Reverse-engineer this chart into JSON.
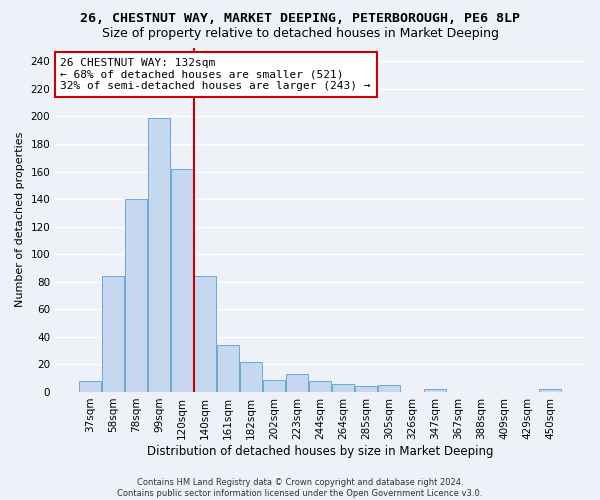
{
  "title": "26, CHESTNUT WAY, MARKET DEEPING, PETERBOROUGH, PE6 8LP",
  "subtitle": "Size of property relative to detached houses in Market Deeping",
  "xlabel": "Distribution of detached houses by size in Market Deeping",
  "ylabel": "Number of detached properties",
  "categories": [
    "37sqm",
    "58sqm",
    "78sqm",
    "99sqm",
    "120sqm",
    "140sqm",
    "161sqm",
    "182sqm",
    "202sqm",
    "223sqm",
    "244sqm",
    "264sqm",
    "285sqm",
    "305sqm",
    "326sqm",
    "347sqm",
    "367sqm",
    "388sqm",
    "409sqm",
    "429sqm",
    "450sqm"
  ],
  "values": [
    8,
    84,
    140,
    199,
    162,
    84,
    34,
    22,
    9,
    13,
    8,
    6,
    4,
    5,
    0,
    2,
    0,
    0,
    0,
    0,
    2
  ],
  "bar_color": "#c5d8f0",
  "bar_edge_color": "#6aaad4",
  "vline_color": "#cc0000",
  "vline_x": 4.5,
  "annotation_text": "26 CHESTNUT WAY: 132sqm\n← 68% of detached houses are smaller (521)\n32% of semi-detached houses are larger (243) →",
  "annotation_box_facecolor": "#ffffff",
  "annotation_box_edgecolor": "#cc0000",
  "ylim": [
    0,
    250
  ],
  "yticks": [
    0,
    20,
    40,
    60,
    80,
    100,
    120,
    140,
    160,
    180,
    200,
    220,
    240
  ],
  "footer_line1": "Contains HM Land Registry data © Crown copyright and database right 2024.",
  "footer_line2": "Contains public sector information licensed under the Open Government Licence v3.0.",
  "bg_color": "#eef2f8",
  "grid_color": "#ffffff",
  "title_fontsize": 9.5,
  "subtitle_fontsize": 9,
  "xlabel_fontsize": 8.5,
  "ylabel_fontsize": 8,
  "tick_fontsize": 7.5,
  "annotation_fontsize": 8,
  "footer_fontsize": 6
}
